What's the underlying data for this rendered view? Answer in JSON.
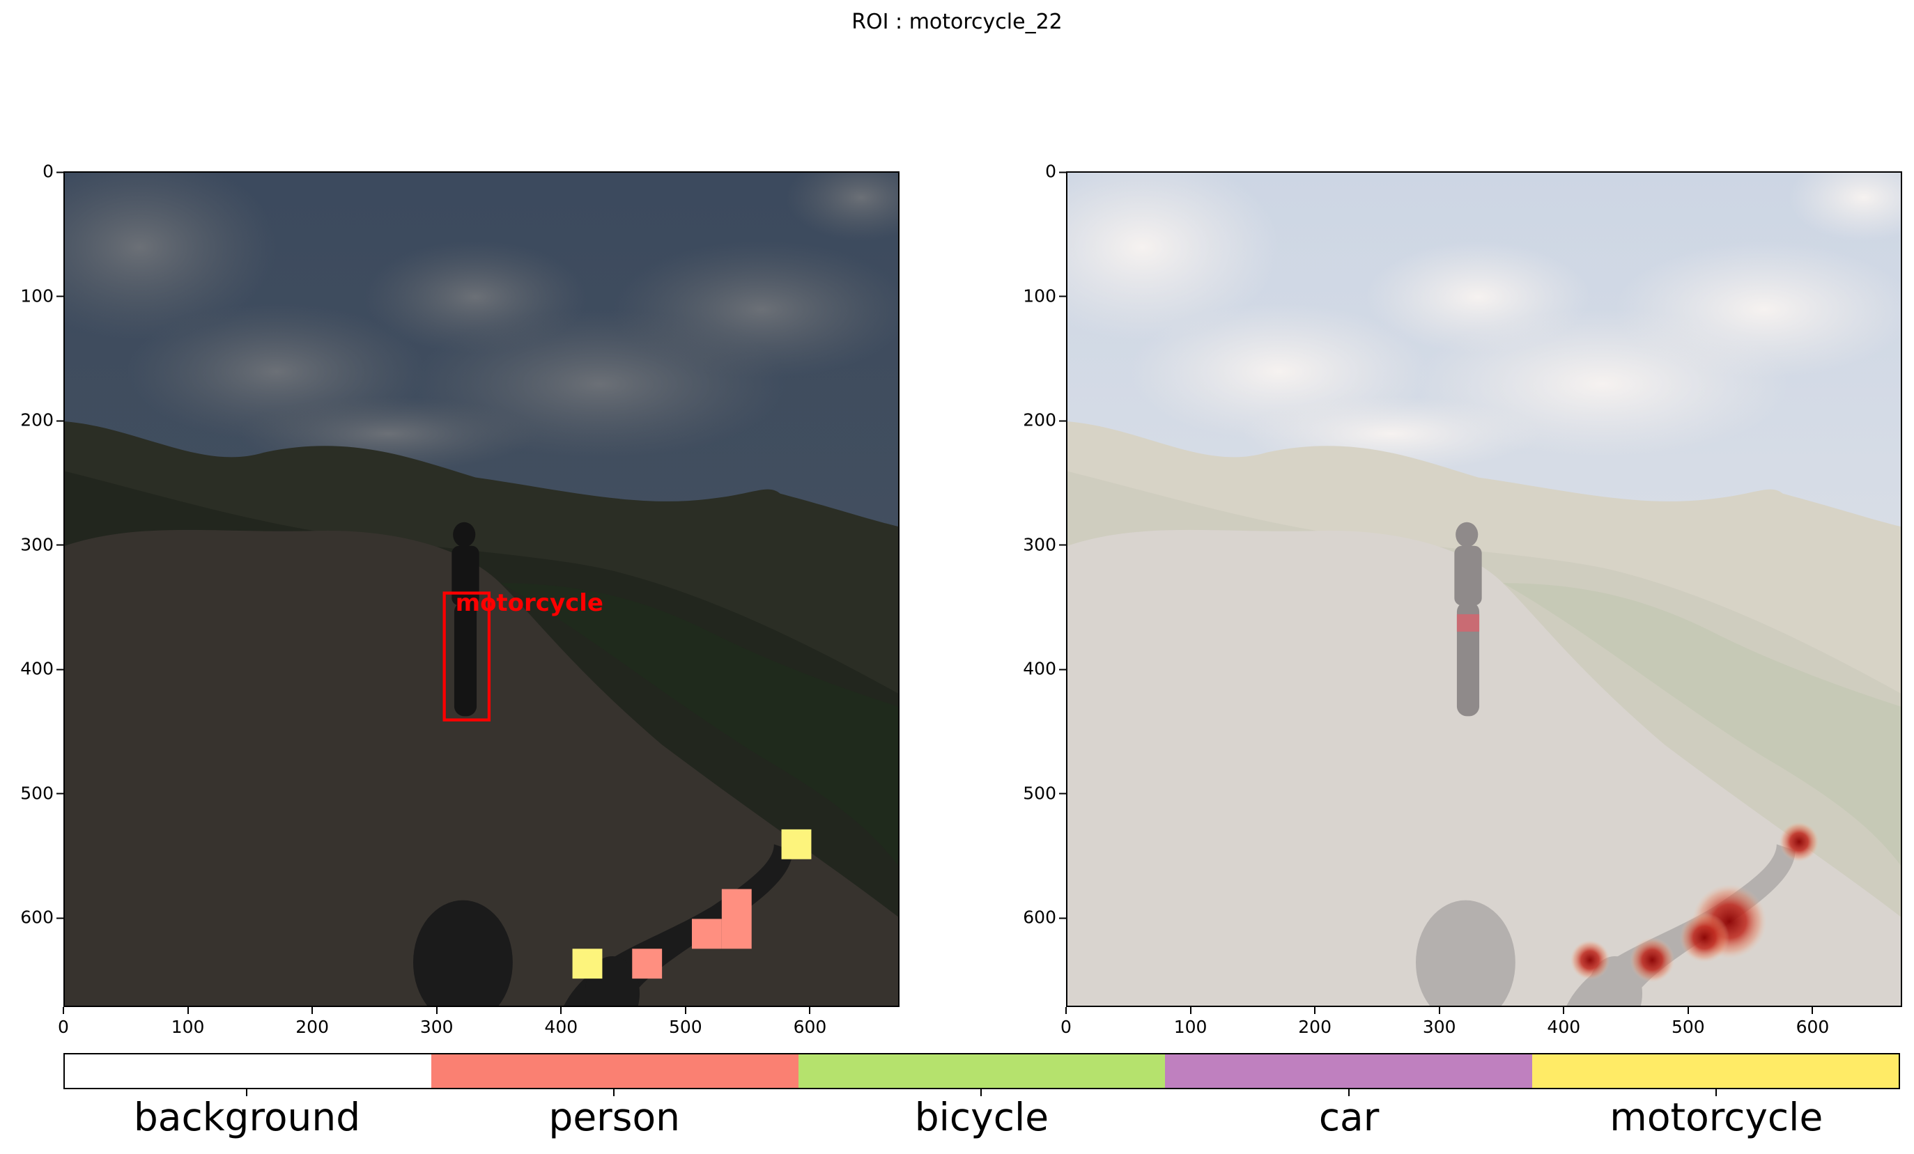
{
  "title": "ROI : motorcycle_22",
  "axes": {
    "y_ticks": [
      "0",
      "100",
      "200",
      "300",
      "400",
      "500",
      "600"
    ],
    "x_ticks": [
      "0",
      "100",
      "200",
      "300",
      "400",
      "500",
      "600"
    ],
    "y_tick_values": [
      0,
      100,
      200,
      300,
      400,
      500,
      600
    ],
    "x_tick_values": [
      0,
      100,
      200,
      300,
      400,
      500,
      600
    ],
    "x_range": [
      0,
      672
    ],
    "y_range": [
      0,
      672
    ]
  },
  "left_panel": {
    "box_label": "motorcycle",
    "box": {
      "x0": 305,
      "y0": 338,
      "x1": 341,
      "y1": 440
    },
    "segments": [
      {
        "class": "motorcycle",
        "x0": 576,
        "y0": 528,
        "x1": 600,
        "y1": 552
      },
      {
        "class": "person",
        "x0": 528,
        "y0": 576,
        "x1": 552,
        "y1": 624
      },
      {
        "class": "person",
        "x0": 504,
        "y0": 600,
        "x1": 528,
        "y1": 624
      },
      {
        "class": "motorcycle",
        "x0": 408,
        "y0": 624,
        "x1": 432,
        "y1": 648
      },
      {
        "class": "person",
        "x0": 456,
        "y0": 624,
        "x1": 480,
        "y1": 648
      }
    ]
  },
  "right_panel": {
    "hotspots": [
      {
        "x": 588,
        "y": 538,
        "r": 16
      },
      {
        "x": 532,
        "y": 602,
        "r": 30
      },
      {
        "x": 512,
        "y": 615,
        "r": 20
      },
      {
        "x": 470,
        "y": 633,
        "r": 18
      },
      {
        "x": 420,
        "y": 633,
        "r": 16
      }
    ]
  },
  "legend": {
    "labels": [
      "background",
      "person",
      "bicycle",
      "car",
      "motorcycle"
    ],
    "colors": [
      "#ffffff",
      "#fa8072",
      "#b5e26d",
      "#bf80bf",
      "#ffeb66"
    ]
  },
  "colors": {
    "box": "#ff0000",
    "person": "#ff8f80",
    "motorcycle": "#fdf47c",
    "heat_core": "#8b0000",
    "heat_mid": "#d7301f"
  }
}
